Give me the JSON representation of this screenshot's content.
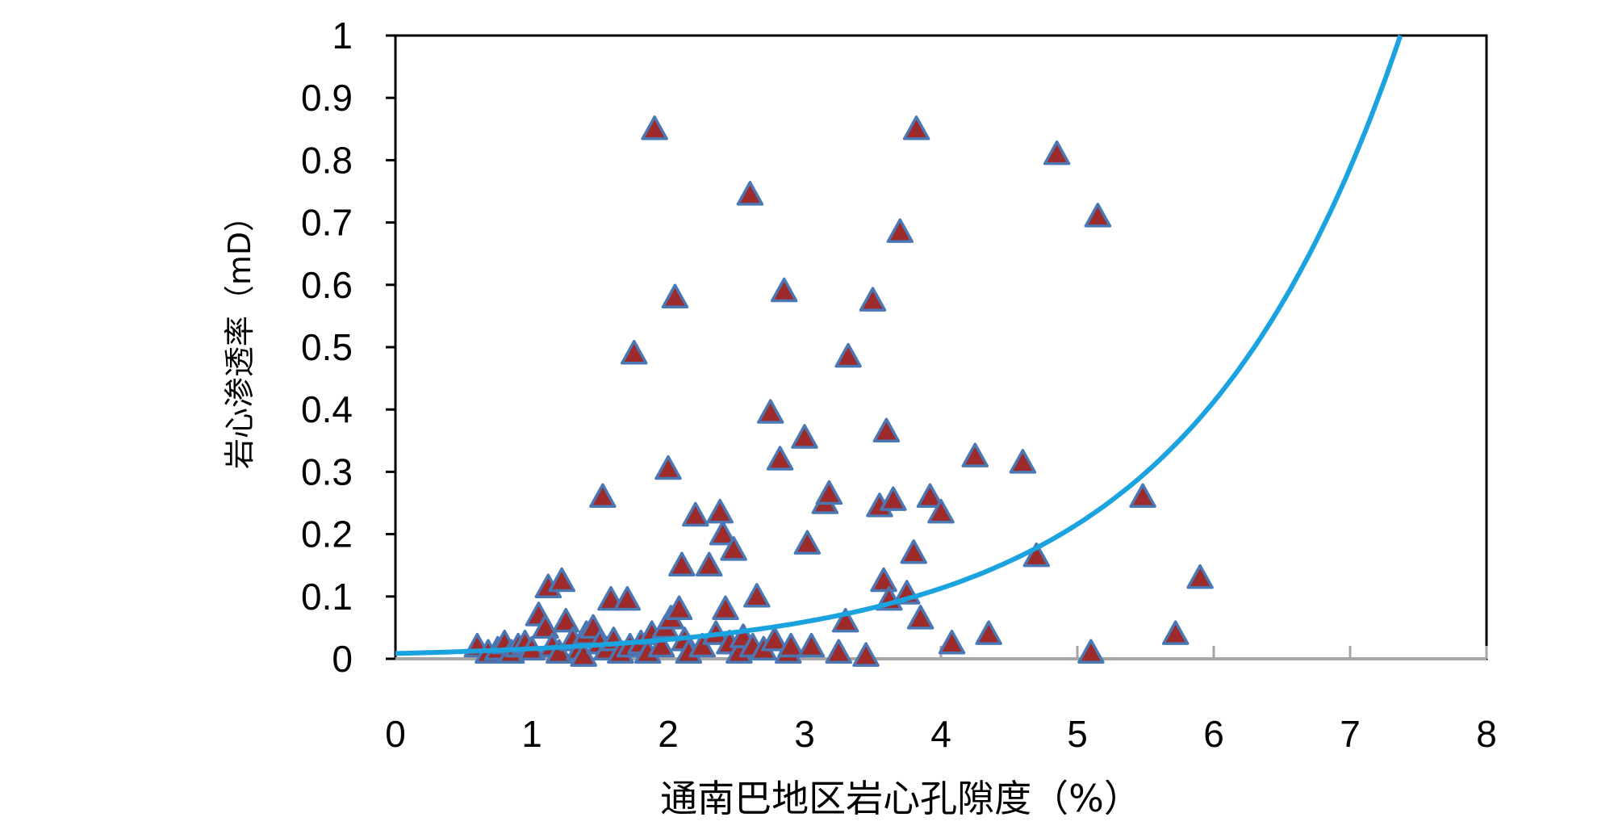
{
  "chart_data": {
    "type": "scatter",
    "xlabel": "通南巴地区岩心孔隙度（%）",
    "ylabel": "岩心渗透率（mD）",
    "xlim": [
      0,
      8
    ],
    "ylim": [
      0,
      1
    ],
    "x_ticks": [
      "0",
      "1",
      "2",
      "3",
      "4",
      "5",
      "6",
      "7",
      "8"
    ],
    "y_ticks": [
      "0",
      "0.1",
      "0.2",
      "0.3",
      "0.4",
      "0.5",
      "0.6",
      "0.7",
      "0.8",
      "0.9",
      "1"
    ],
    "grid": false,
    "legend": "none",
    "colors": {
      "marker_fill": "#9e2b2b",
      "marker_edge": "#4a78b5",
      "trend_line": "#1aa3df",
      "axis": "#000000",
      "x_axis_line": "#a6a6a6"
    },
    "trendline": {
      "type": "exponential",
      "a": 0.0085,
      "b": 0.647
    },
    "series": [
      {
        "points": [
          [
            0.6,
            0.02
          ],
          [
            0.68,
            0.01
          ],
          [
            0.75,
            0.015
          ],
          [
            0.8,
            0.025
          ],
          [
            0.85,
            0.01
          ],
          [
            0.9,
            0.02
          ],
          [
            0.95,
            0.025
          ],
          [
            1.0,
            0.015
          ],
          [
            1.05,
            0.07
          ],
          [
            1.1,
            0.05
          ],
          [
            1.12,
            0.115
          ],
          [
            1.15,
            0.02
          ],
          [
            1.2,
            0.01
          ],
          [
            1.22,
            0.125
          ],
          [
            1.25,
            0.06
          ],
          [
            1.3,
            0.03
          ],
          [
            1.35,
            0.015
          ],
          [
            1.38,
            0.005
          ],
          [
            1.4,
            0.04
          ],
          [
            1.45,
            0.05
          ],
          [
            1.5,
            0.025
          ],
          [
            1.52,
            0.26
          ],
          [
            1.55,
            0.015
          ],
          [
            1.58,
            0.095
          ],
          [
            1.6,
            0.03
          ],
          [
            1.65,
            0.01
          ],
          [
            1.7,
            0.095
          ],
          [
            1.72,
            0.02
          ],
          [
            1.75,
            0.49
          ],
          [
            1.8,
            0.025
          ],
          [
            1.85,
            0.01
          ],
          [
            1.88,
            0.04
          ],
          [
            1.9,
            0.85
          ],
          [
            1.95,
            0.02
          ],
          [
            1.98,
            0.05
          ],
          [
            2.0,
            0.305
          ],
          [
            2.02,
            0.065
          ],
          [
            2.05,
            0.58
          ],
          [
            2.08,
            0.08
          ],
          [
            2.1,
            0.15
          ],
          [
            2.12,
            0.03
          ],
          [
            2.15,
            0.01
          ],
          [
            2.2,
            0.23
          ],
          [
            2.25,
            0.02
          ],
          [
            2.3,
            0.15
          ],
          [
            2.35,
            0.04
          ],
          [
            2.38,
            0.235
          ],
          [
            2.4,
            0.2
          ],
          [
            2.42,
            0.08
          ],
          [
            2.45,
            0.025
          ],
          [
            2.48,
            0.175
          ],
          [
            2.52,
            0.01
          ],
          [
            2.55,
            0.035
          ],
          [
            2.6,
            0.745
          ],
          [
            2.62,
            0.02
          ],
          [
            2.65,
            0.1
          ],
          [
            2.7,
            0.015
          ],
          [
            2.75,
            0.395
          ],
          [
            2.78,
            0.03
          ],
          [
            2.82,
            0.32
          ],
          [
            2.85,
            0.59
          ],
          [
            2.88,
            0.01
          ],
          [
            2.9,
            0.02
          ],
          [
            3.0,
            0.355
          ],
          [
            3.02,
            0.185
          ],
          [
            3.05,
            0.02
          ],
          [
            3.15,
            0.25
          ],
          [
            3.18,
            0.265
          ],
          [
            3.25,
            0.01
          ],
          [
            3.3,
            0.06
          ],
          [
            3.32,
            0.485
          ],
          [
            3.45,
            0.005
          ],
          [
            3.5,
            0.575
          ],
          [
            3.55,
            0.245
          ],
          [
            3.58,
            0.125
          ],
          [
            3.6,
            0.365
          ],
          [
            3.62,
            0.095
          ],
          [
            3.65,
            0.255
          ],
          [
            3.7,
            0.685
          ],
          [
            3.75,
            0.105
          ],
          [
            3.8,
            0.17
          ],
          [
            3.82,
            0.85
          ],
          [
            3.85,
            0.065
          ],
          [
            3.92,
            0.26
          ],
          [
            4.0,
            0.235
          ],
          [
            4.08,
            0.025
          ],
          [
            4.25,
            0.325
          ],
          [
            4.35,
            0.04
          ],
          [
            4.6,
            0.315
          ],
          [
            4.7,
            0.165
          ],
          [
            4.85,
            0.81
          ],
          [
            5.1,
            0.01
          ],
          [
            5.15,
            0.71
          ],
          [
            5.48,
            0.26
          ],
          [
            5.72,
            0.04
          ],
          [
            5.9,
            0.13
          ]
        ]
      }
    ]
  }
}
